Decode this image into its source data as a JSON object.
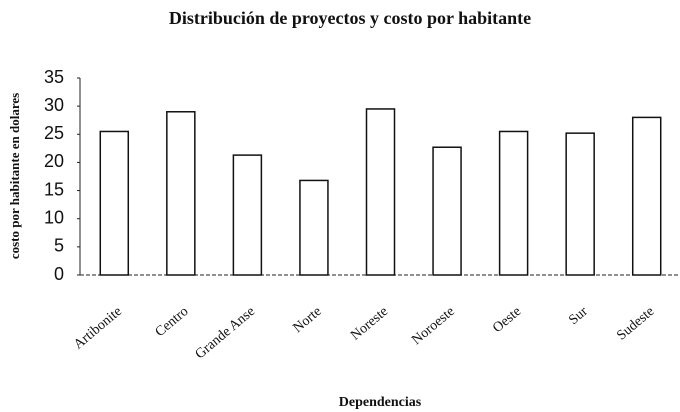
{
  "chart_data": {
    "type": "bar",
    "title": "Distribución de proyectos y costo por habitante",
    "categories": [
      "Artibonite",
      "Centro",
      "Grande Anse",
      "Norte",
      "Noreste",
      "Noroeste",
      "Oeste",
      "Sur",
      "Sudeste"
    ],
    "values": [
      25.5,
      29,
      21.3,
      16.8,
      29.5,
      22.7,
      25.5,
      25.2,
      28
    ],
    "color": "#ffffff",
    "x_label": "Dependencias",
    "y_label": "costo por habitante en dolares",
    "ylim": [
      0,
      35
    ],
    "yticks": [
      0,
      5,
      10,
      15,
      20,
      25,
      30,
      35
    ],
    "grid": false
  }
}
